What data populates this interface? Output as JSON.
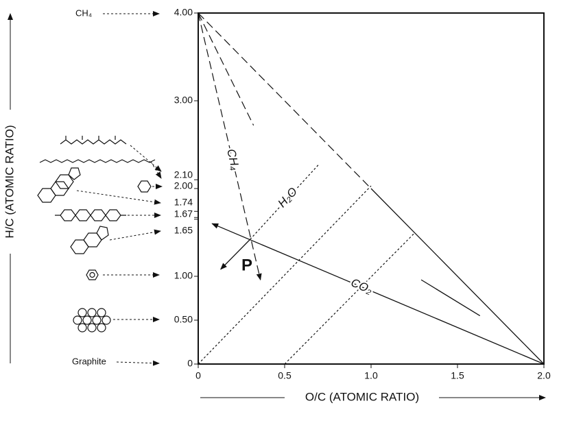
{
  "chart_data": {
    "type": "line",
    "xlabel": "O/C (ATOMIC RATIO)",
    "ylabel": "H/C (ATOMIC RATIO)",
    "xlim": [
      0,
      2
    ],
    "ylim": [
      0,
      4
    ],
    "xticks": [
      0,
      {
        "value": 0.5,
        "label": "0.5"
      },
      {
        "value": 1,
        "label": "1.0"
      },
      {
        "value": 1.5,
        "label": "1.5"
      },
      {
        "value": 2,
        "label": "2.0"
      }
    ],
    "yticks": [
      0,
      {
        "value": 0.5,
        "label": "0.50"
      },
      {
        "value": 1,
        "label": "1.00"
      },
      {
        "value": 1.65,
        "label": "1.65"
      },
      {
        "value": 1.67,
        "label": "1.67"
      },
      {
        "value": 1.74,
        "label": "1.74"
      },
      {
        "value": 2,
        "label": "2.00"
      },
      {
        "value": 2.1,
        "label": "2.10"
      },
      {
        "value": 3,
        "label": "3.00"
      },
      {
        "value": 4,
        "label": "4.00"
      }
    ],
    "annotations": [
      "CH₄",
      "Graphite",
      "P"
    ],
    "series": [
      {
        "x": [
          0,
          1
        ],
        "values": [
          4,
          2
        ],
        "dash": "dashed"
      },
      {
        "x": [
          1,
          2
        ],
        "values": [
          2,
          0
        ],
        "dash": "solid"
      },
      {
        "name": "CH₄",
        "x": [
          0,
          0.36
        ],
        "values": [
          4,
          0.96
        ],
        "dash": "dashed",
        "arrow": true
      },
      {
        "x": [
          0,
          0.32
        ],
        "values": [
          4,
          2.72
        ],
        "dash": "dashed"
      },
      {
        "name": "H₂O",
        "x": [
          0.3,
          0.7
        ],
        "values": [
          1.42,
          2.28
        ],
        "dash": "dotted"
      },
      {
        "x": [
          0,
          1
        ],
        "values": [
          0,
          2.03
        ],
        "dash": "dotted"
      },
      {
        "x": [
          0.5,
          1.25
        ],
        "values": [
          0,
          1.49
        ],
        "dash": "dotted"
      },
      {
        "name": "CO₂",
        "x": [
          2,
          0.08
        ],
        "values": [
          0,
          1.6
        ],
        "dash": "solid",
        "arrow": true
      },
      {
        "x": [
          1.63,
          1.29
        ],
        "values": [
          0.55,
          0.96
        ],
        "dash": "solid"
      },
      {
        "x": [
          0.3,
          0.13
        ],
        "values": [
          1.42,
          1.08
        ],
        "dash": "solid",
        "arrow": true
      }
    ]
  }
}
